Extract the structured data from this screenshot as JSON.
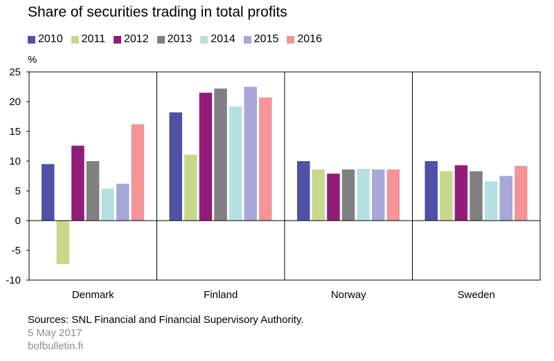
{
  "title": "Share of securities trading in total profits",
  "unit_label": "%",
  "sources": "Sources: SNL Financial and Financial Supervisory Authority.",
  "date": "5 May 2017",
  "site": "bofbulletin.fi",
  "chart_data": {
    "type": "bar",
    "title": "Share of securities trading in total profits",
    "ylabel": "%",
    "xlabel": "",
    "ylim": [
      -10,
      25
    ],
    "yticks": [
      25,
      20,
      15,
      10,
      5,
      0,
      -5,
      -10
    ],
    "grid": false,
    "legend_position": "top",
    "categories": [
      "Denmark",
      "Finland",
      "Norway",
      "Sweden"
    ],
    "series": [
      {
        "name": "2010",
        "color": "#4f51a6",
        "values": [
          9.5,
          18.2,
          10.0,
          10.0
        ]
      },
      {
        "name": "2011",
        "color": "#c8d88a",
        "values": [
          -7.3,
          11.1,
          8.6,
          8.3
        ]
      },
      {
        "name": "2012",
        "color": "#931c7a",
        "values": [
          12.6,
          21.5,
          7.9,
          9.3
        ]
      },
      {
        "name": "2013",
        "color": "#808080",
        "values": [
          10.0,
          22.2,
          8.6,
          8.3
        ]
      },
      {
        "name": "2014",
        "color": "#b7e0e2",
        "values": [
          5.4,
          19.2,
          8.7,
          6.6
        ]
      },
      {
        "name": "2015",
        "color": "#a7a8d8",
        "values": [
          6.2,
          22.5,
          8.6,
          7.5
        ]
      },
      {
        "name": "2016",
        "color": "#f39497",
        "values": [
          16.2,
          20.7,
          8.6,
          9.2
        ]
      }
    ]
  }
}
